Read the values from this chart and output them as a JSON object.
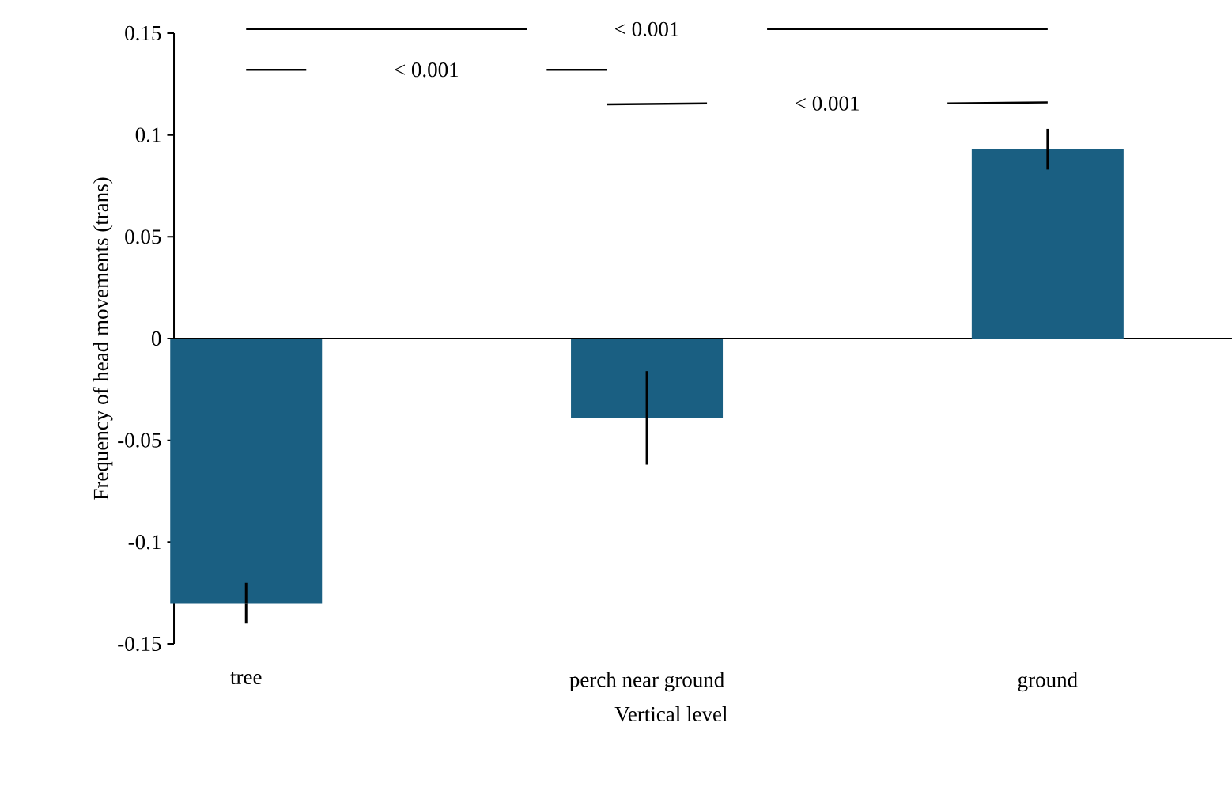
{
  "chart_data": {
    "type": "bar",
    "xlabel": "Vertical level",
    "ylabel": "Frequency of head movements (trans)",
    "categories": [
      "tree",
      "perch near ground",
      "ground"
    ],
    "values": [
      -0.13,
      -0.039,
      0.093
    ],
    "errors": [
      0.01,
      0.023,
      0.01
    ],
    "color": "#1a5f82",
    "ylim": [
      -0.15,
      0.15
    ],
    "yticks": [
      -0.15,
      -0.1,
      -0.05,
      0,
      0.05,
      0.1,
      0.15
    ],
    "annotations": [
      "< 0.001",
      "< 0.001",
      "< 0.001"
    ]
  }
}
